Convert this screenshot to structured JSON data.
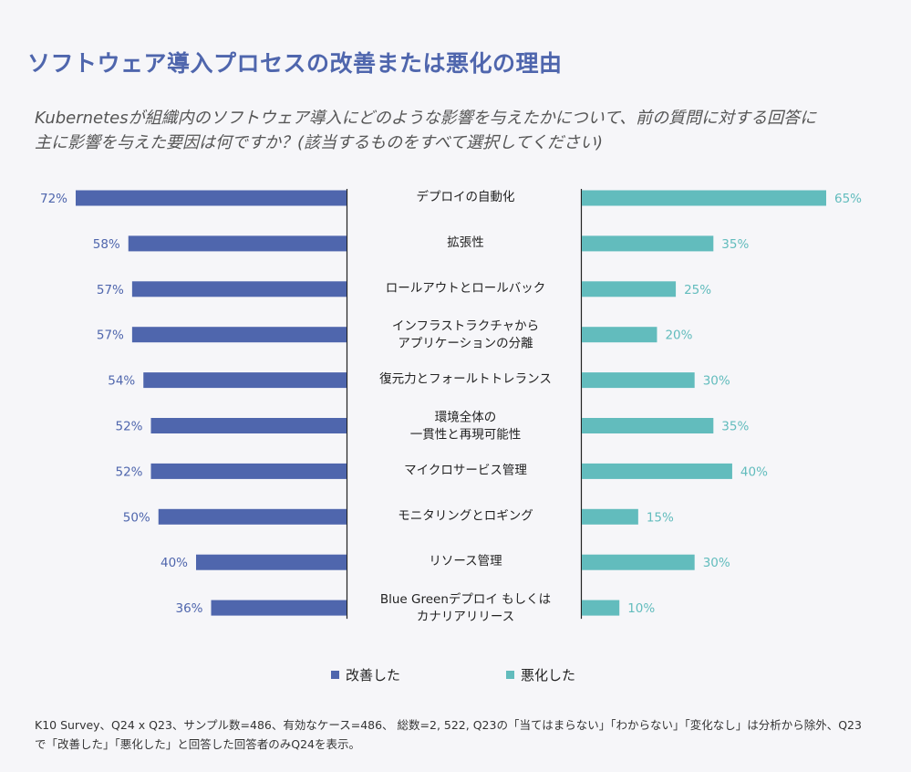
{
  "title": "ソフトウェア導入プロセスの改善または悪化の理由",
  "subtitle": {
    "line1": "Kubernetesが組織内のソフトウェア導入にどのような影響を与えたかについて、前の質問に対する回答に",
    "line2": "主に影響を与えた要因は何ですか？(該当するものをすべて選択してください)"
  },
  "colors": {
    "improved": "#4f66ad",
    "worsened": "#62bcbd",
    "title": "#4f66ad"
  },
  "footnote": {
    "line1": "K10 Survey、Q24 x Q23、サンプル数=486、有効なケース=486、 総数=2, 522, Q23の「当てはまらない」「わからない」「変化なし」は分析から除外、Q23",
    "line2": "で「改善した」「悪化した」と回答した回答者のみQ24を表示。"
  },
  "chart_data": {
    "type": "bar",
    "orientation": "horizontal-butterfly",
    "unit": "%",
    "categories": [
      [
        "デプロイの自動化"
      ],
      [
        "拡張性"
      ],
      [
        "ロールアウトとロールバック"
      ],
      [
        "インフラストラクチャから",
        "アプリケーションの分離"
      ],
      [
        "復元力とフォールトトレランス"
      ],
      [
        "環境全体の",
        "一貫性と再現可能性"
      ],
      [
        "マイクロサービス管理"
      ],
      [
        "モニタリングとロギング"
      ],
      [
        "リソース管理"
      ],
      [
        "Blue Greenデプロイ もしくは",
        "カナリアリリース"
      ]
    ],
    "series": [
      {
        "name": "改善した",
        "side": "left",
        "color": "#4f66ad",
        "values": [
          72,
          58,
          57,
          57,
          54,
          52,
          52,
          50,
          40,
          36
        ]
      },
      {
        "name": "悪化した",
        "side": "right",
        "color": "#62bcbd",
        "values": [
          65,
          35,
          25,
          20,
          30,
          35,
          40,
          15,
          30,
          10
        ]
      }
    ],
    "legend_position": "bottom",
    "grid": false
  }
}
